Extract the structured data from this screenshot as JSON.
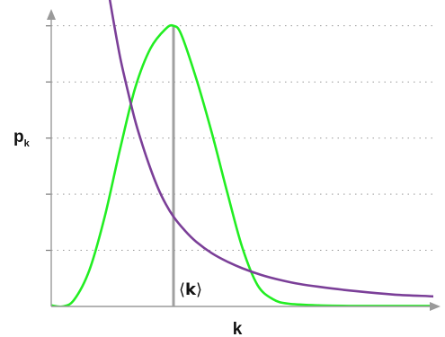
{
  "chart_data": {
    "type": "line",
    "title": "",
    "xlabel": "k",
    "ylabel": {
      "main": "p",
      "sub": "k"
    },
    "xlim": [
      0,
      10
    ],
    "ylim": [
      0,
      5.3
    ],
    "yticks": [
      1,
      2,
      3,
      4,
      5
    ],
    "grid": "horizontal-dotted",
    "legend": "none",
    "marker": {
      "x": 3.2,
      "label_left": "⟨",
      "label_main": "k",
      "label_right": "⟩",
      "color": "#a0a0a0"
    },
    "series": [
      {
        "color": "#22ee22",
        "x": [
          0,
          0.3,
          0.6,
          1.0,
          1.4,
          1.8,
          2.2,
          2.6,
          3.0,
          3.2,
          3.4,
          3.8,
          4.2,
          4.6,
          5.0,
          5.4,
          5.8,
          6.2,
          7.0,
          8.0,
          9.0,
          10.0
        ],
        "y": [
          0.02,
          0.0,
          0.12,
          0.65,
          1.6,
          2.8,
          3.9,
          4.6,
          4.95,
          5.0,
          4.85,
          4.05,
          3.1,
          2.05,
          1.05,
          0.38,
          0.13,
          0.05,
          0.02,
          0.01,
          0.01,
          0.01
        ]
      },
      {
        "color": "#7b3f98",
        "x": [
          1.4,
          1.6,
          1.8,
          2.0,
          2.2,
          2.4,
          2.6,
          2.8,
          3.0,
          3.2,
          3.5,
          3.8,
          4.2,
          4.6,
          5.0,
          5.5,
          6.0,
          6.5,
          7.0,
          8.0,
          9.0,
          10.0
        ],
        "y": [
          6.0,
          5.2,
          4.45,
          3.85,
          3.3,
          2.85,
          2.45,
          2.1,
          1.82,
          1.6,
          1.35,
          1.15,
          0.95,
          0.8,
          0.68,
          0.56,
          0.47,
          0.4,
          0.35,
          0.27,
          0.21,
          0.18
        ]
      }
    ]
  }
}
